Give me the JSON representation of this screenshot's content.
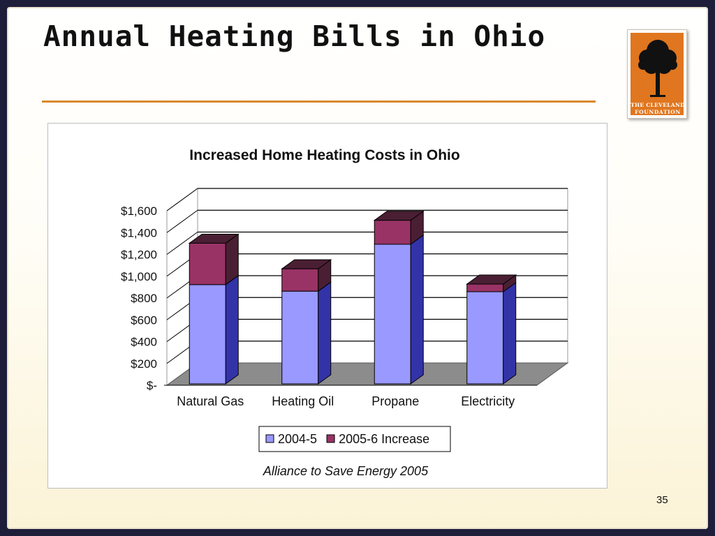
{
  "slide": {
    "title": "Annual Heating Bills in Ohio",
    "page_number": "35"
  },
  "logo": {
    "lettering": "THE CLEVELAND FOUNDATION",
    "colors": {
      "background": "#e0761f",
      "tree": "#111111",
      "text": "#ffffff"
    }
  },
  "chart_data": {
    "type": "bar",
    "stacked": true,
    "three_d": true,
    "title": "Increased Home Heating Costs in Ohio",
    "categories": [
      "Natural Gas",
      "Heating Oil",
      "Propane",
      "Electricity"
    ],
    "series": [
      {
        "name": "2004-5",
        "values": [
          910,
          850,
          1280,
          845
        ],
        "color": "#9999ff",
        "side_color": "#3333a8"
      },
      {
        "name": "2005-6 Increase",
        "values": [
          380,
          205,
          220,
          70
        ],
        "color": "#993366",
        "side_color": "#4a1f33"
      }
    ],
    "y_ticks": [
      "$-",
      "$200",
      "$400",
      "$600",
      "$800",
      "$1,000",
      "$1,200",
      "$1,400",
      "$1,600"
    ],
    "ylim": [
      0,
      1600
    ],
    "grid": true,
    "legend_position": "bottom",
    "source_note": "Alliance to Save Energy 2005",
    "colors": {
      "floor": "#8c8c8c",
      "grid": "#000000"
    }
  }
}
